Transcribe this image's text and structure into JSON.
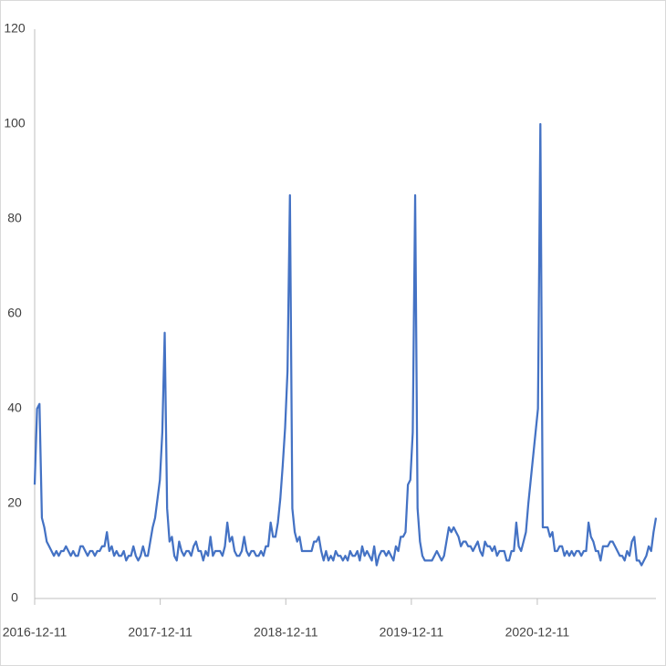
{
  "chart_data": {
    "type": "line",
    "x": [
      "2016-12-11",
      "2016-12-18",
      "2016-12-25",
      "2017-01-01",
      "2017-01-08",
      "2017-01-15",
      "2017-01-22",
      "2017-01-29",
      "2017-02-05",
      "2017-02-12",
      "2017-02-19",
      "2017-02-26",
      "2017-03-05",
      "2017-03-12",
      "2017-03-19",
      "2017-03-26",
      "2017-04-02",
      "2017-04-09",
      "2017-04-16",
      "2017-04-23",
      "2017-04-30",
      "2017-05-07",
      "2017-05-14",
      "2017-05-21",
      "2017-05-28",
      "2017-06-04",
      "2017-06-11",
      "2017-06-18",
      "2017-06-25",
      "2017-07-02",
      "2017-07-09",
      "2017-07-16",
      "2017-07-23",
      "2017-07-30",
      "2017-08-06",
      "2017-08-13",
      "2017-08-20",
      "2017-08-27",
      "2017-09-03",
      "2017-09-10",
      "2017-09-17",
      "2017-09-24",
      "2017-10-01",
      "2017-10-08",
      "2017-10-15",
      "2017-10-22",
      "2017-10-29",
      "2017-11-05",
      "2017-11-12",
      "2017-11-19",
      "2017-11-26",
      "2017-12-03",
      "2017-12-10",
      "2017-12-17",
      "2017-12-24",
      "2017-12-31",
      "2018-01-07",
      "2018-01-14",
      "2018-01-21",
      "2018-01-28",
      "2018-02-04",
      "2018-02-11",
      "2018-02-18",
      "2018-02-25",
      "2018-03-04",
      "2018-03-11",
      "2018-03-18",
      "2018-03-25",
      "2018-04-01",
      "2018-04-08",
      "2018-04-15",
      "2018-04-22",
      "2018-04-29",
      "2018-05-06",
      "2018-05-13",
      "2018-05-20",
      "2018-05-27",
      "2018-06-03",
      "2018-06-10",
      "2018-06-17",
      "2018-06-24",
      "2018-07-01",
      "2018-07-08",
      "2018-07-15",
      "2018-07-22",
      "2018-07-29",
      "2018-08-05",
      "2018-08-12",
      "2018-08-19",
      "2018-08-26",
      "2018-09-02",
      "2018-09-09",
      "2018-09-16",
      "2018-09-23",
      "2018-09-30",
      "2018-10-07",
      "2018-10-14",
      "2018-10-21",
      "2018-10-28",
      "2018-11-04",
      "2018-11-11",
      "2018-11-18",
      "2018-11-25",
      "2018-12-02",
      "2018-12-09",
      "2018-12-16",
      "2018-12-23",
      "2018-12-30",
      "2019-01-06",
      "2019-01-13",
      "2019-01-20",
      "2019-01-27",
      "2019-02-03",
      "2019-02-10",
      "2019-02-17",
      "2019-02-24",
      "2019-03-03",
      "2019-03-10",
      "2019-03-17",
      "2019-03-24",
      "2019-03-31",
      "2019-04-07",
      "2019-04-14",
      "2019-04-21",
      "2019-04-28",
      "2019-05-05",
      "2019-05-12",
      "2019-05-19",
      "2019-05-26",
      "2019-06-02",
      "2019-06-09",
      "2019-06-16",
      "2019-06-23",
      "2019-06-30",
      "2019-07-07",
      "2019-07-14",
      "2019-07-21",
      "2019-07-28",
      "2019-08-04",
      "2019-08-11",
      "2019-08-18",
      "2019-08-25",
      "2019-09-01",
      "2019-09-08",
      "2019-09-15",
      "2019-09-22",
      "2019-09-29",
      "2019-10-06",
      "2019-10-13",
      "2019-10-20",
      "2019-10-27",
      "2019-11-03",
      "2019-11-10",
      "2019-11-17",
      "2019-11-24",
      "2019-12-01",
      "2019-12-08",
      "2019-12-15",
      "2019-12-22",
      "2019-12-29",
      "2020-01-05",
      "2020-01-12",
      "2020-01-19",
      "2020-01-26",
      "2020-02-02",
      "2020-02-09",
      "2020-02-16",
      "2020-02-23",
      "2020-03-01",
      "2020-03-08",
      "2020-03-15",
      "2020-03-22",
      "2020-03-29",
      "2020-04-05",
      "2020-04-12",
      "2020-04-19",
      "2020-04-26",
      "2020-05-03",
      "2020-05-10",
      "2020-05-17",
      "2020-05-24",
      "2020-05-31",
      "2020-06-07",
      "2020-06-14",
      "2020-06-21",
      "2020-06-28",
      "2020-07-05",
      "2020-07-12",
      "2020-07-19",
      "2020-07-26",
      "2020-08-02",
      "2020-08-09",
      "2020-08-16",
      "2020-08-23",
      "2020-08-30",
      "2020-09-06",
      "2020-09-13",
      "2020-09-20",
      "2020-09-27",
      "2020-10-04",
      "2020-10-11",
      "2020-10-18",
      "2020-10-25",
      "2020-11-01",
      "2020-11-08",
      "2020-11-15",
      "2020-11-22",
      "2020-11-29",
      "2020-12-06",
      "2020-12-13",
      "2020-12-20",
      "2020-12-27",
      "2021-01-03",
      "2021-01-10",
      "2021-01-17",
      "2021-01-24",
      "2021-01-31",
      "2021-02-07",
      "2021-02-14",
      "2021-02-21",
      "2021-02-28",
      "2021-03-07",
      "2021-03-14",
      "2021-03-21",
      "2021-03-28",
      "2021-04-04",
      "2021-04-11",
      "2021-04-18",
      "2021-04-25",
      "2021-05-02",
      "2021-05-09",
      "2021-05-16",
      "2021-05-23",
      "2021-05-30",
      "2021-06-06",
      "2021-06-13",
      "2021-06-20",
      "2021-06-27",
      "2021-07-04",
      "2021-07-11",
      "2021-07-18",
      "2021-07-25",
      "2021-08-01",
      "2021-08-08",
      "2021-08-15",
      "2021-08-22",
      "2021-08-29",
      "2021-09-05",
      "2021-09-12",
      "2021-09-19",
      "2021-09-26",
      "2021-10-03",
      "2021-10-10",
      "2021-10-17",
      "2021-10-24",
      "2021-10-31",
      "2021-11-07",
      "2021-11-14",
      "2021-11-21"
    ],
    "values": [
      24,
      40,
      41,
      17,
      15,
      12,
      11,
      10,
      9,
      10,
      9,
      10,
      10,
      11,
      10,
      9,
      10,
      9,
      9,
      11,
      11,
      10,
      9,
      10,
      10,
      9,
      10,
      10,
      11,
      11,
      14,
      10,
      11,
      9,
      10,
      9,
      9,
      10,
      8,
      9,
      9,
      11,
      9,
      8,
      9,
      11,
      9,
      9,
      12,
      15,
      17,
      21,
      25,
      35,
      56,
      19,
      12,
      13,
      9,
      8,
      12,
      10,
      9,
      10,
      10,
      9,
      11,
      12,
      10,
      10,
      8,
      10,
      9,
      13,
      9,
      10,
      10,
      10,
      9,
      11,
      16,
      12,
      13,
      10,
      9,
      9,
      10,
      13,
      10,
      9,
      10,
      10,
      9,
      9,
      10,
      9,
      11,
      11,
      16,
      13,
      13,
      16,
      21,
      28,
      36,
      48,
      85,
      19,
      14,
      12,
      13,
      10,
      10,
      10,
      10,
      10,
      12,
      12,
      13,
      10,
      8,
      10,
      8,
      9,
      8,
      10,
      9,
      9,
      8,
      9,
      8,
      10,
      9,
      9,
      10,
      8,
      11,
      9,
      10,
      9,
      8,
      11,
      7,
      9,
      10,
      10,
      9,
      10,
      9,
      8,
      11,
      10,
      13,
      13,
      14,
      24,
      25,
      35,
      85,
      19,
      12,
      9,
      8,
      8,
      8,
      8,
      9,
      10,
      9,
      8,
      9,
      12,
      15,
      14,
      15,
      14,
      13,
      11,
      12,
      12,
      11,
      11,
      10,
      11,
      12,
      10,
      9,
      12,
      11,
      11,
      10,
      11,
      9,
      10,
      10,
      10,
      8,
      8,
      10,
      10,
      16,
      11,
      10,
      12,
      14,
      20,
      25,
      30,
      35,
      40,
      100,
      15,
      15,
      15,
      13,
      14,
      10,
      10,
      11,
      11,
      9,
      10,
      9,
      10,
      9,
      10,
      10,
      9,
      10,
      10,
      16,
      13,
      12,
      10,
      10,
      8,
      11,
      11,
      11,
      12,
      12,
      11,
      10,
      9,
      9,
      8,
      10,
      9,
      12,
      13,
      8,
      8,
      7,
      8,
      9,
      11,
      10,
      14,
      17
    ],
    "color": "#4472c4",
    "xlim": [
      "2016-12-11",
      "2021-11-21"
    ],
    "xticks": [
      "2016-12-11",
      "2017-12-11",
      "2018-12-11",
      "2019-12-11",
      "2020-12-11"
    ],
    "ylim": [
      0,
      120
    ],
    "yticks": [
      0,
      20,
      40,
      60,
      80,
      100,
      120
    ],
    "grid": false
  }
}
